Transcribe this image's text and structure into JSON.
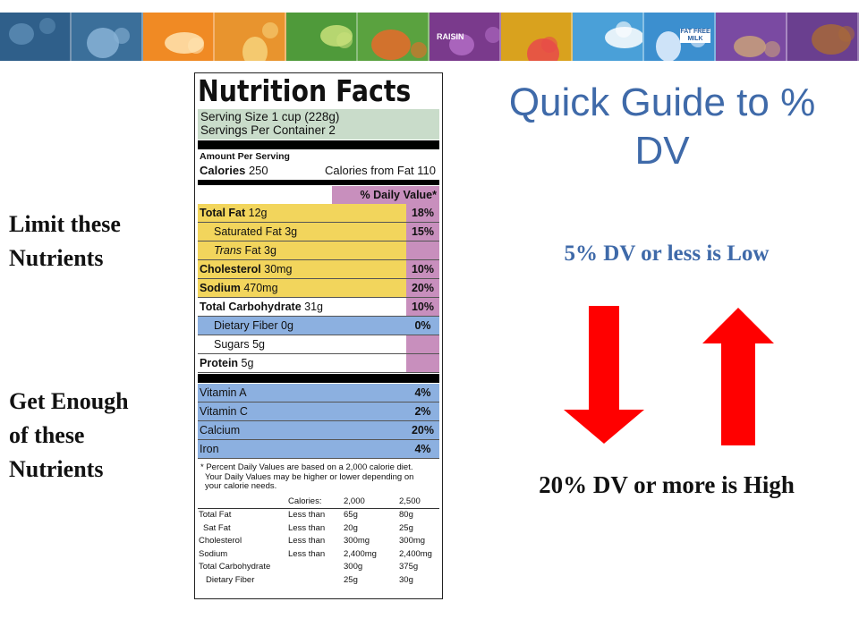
{
  "banner": {
    "tiles": [
      {
        "color": "#2f5f8a",
        "accent": "#5b8bb3"
      },
      {
        "color": "#3b6f9a",
        "accent": "#88b3d6"
      },
      {
        "color": "#f08a24",
        "accent": "#ffe3b0"
      },
      {
        "color": "#e8942e",
        "accent": "#f6d27a"
      },
      {
        "color": "#4f9a3a",
        "accent": "#c8e07a"
      },
      {
        "color": "#5aa23f",
        "accent": "#e86a2a"
      },
      {
        "color": "#7a3a8c",
        "accent": "#b16cc4"
      },
      {
        "color": "#d9a21e",
        "accent": "#e84a4a"
      },
      {
        "color": "#4aa0d8",
        "accent": "#ffffff"
      },
      {
        "color": "#3c8fcf",
        "accent": "#e8f2ff"
      },
      {
        "color": "#7a4aa2",
        "accent": "#c9a07a"
      },
      {
        "color": "#6a3f8f",
        "accent": "#a6673a"
      }
    ],
    "raisin_label": "RAISIN",
    "milk_label": "FAT FREE MILK"
  },
  "label": {
    "title": "Nutrition Facts",
    "serving_size": "Serving Size 1 cup (228g)",
    "servings_per_container": "Servings Per Container  2",
    "amount_per_serving": "Amount Per Serving",
    "calories_label": "Calories",
    "calories_value": "250",
    "calories_from_fat": "Calories from Fat 110",
    "dv_header": "% Daily Value*",
    "nutrients": [
      {
        "name": "Total Fat",
        "amount": "12g",
        "dv": "18%",
        "bold": true,
        "indent": false,
        "italic_trans": false,
        "color": "yellow"
      },
      {
        "name": "Saturated Fat",
        "amount": "3g",
        "dv": "15%",
        "bold": false,
        "indent": true,
        "italic_trans": false,
        "color": "yellow"
      },
      {
        "name": "Trans",
        "amount": "Fat 3g",
        "dv": "",
        "bold": false,
        "indent": true,
        "italic_trans": true,
        "color": "yellow"
      },
      {
        "name": "Cholesterol",
        "amount": "30mg",
        "dv": "10%",
        "bold": true,
        "indent": false,
        "italic_trans": false,
        "color": "yellow"
      },
      {
        "name": "Sodium",
        "amount": "470mg",
        "dv": "20%",
        "bold": true,
        "indent": false,
        "italic_trans": false,
        "color": "yellow"
      },
      {
        "name": "Total Carbohydrate",
        "amount": "31g",
        "dv": "10%",
        "bold": true,
        "indent": false,
        "italic_trans": false,
        "color": "white"
      },
      {
        "name": "Dietary Fiber",
        "amount": "0g",
        "dv": "0%",
        "bold": false,
        "indent": true,
        "italic_trans": false,
        "color": "blue"
      },
      {
        "name": "Sugars",
        "amount": "5g",
        "dv": "",
        "bold": false,
        "indent": true,
        "italic_trans": false,
        "color": "white"
      },
      {
        "name": "Protein",
        "amount": "5g",
        "dv": "",
        "bold": true,
        "indent": false,
        "italic_trans": false,
        "color": "white"
      }
    ],
    "vitamins": [
      {
        "name": "Vitamin A",
        "dv": "4%"
      },
      {
        "name": "Vitamin C",
        "dv": "2%"
      },
      {
        "name": "Calcium",
        "dv": "20%"
      },
      {
        "name": "Iron",
        "dv": "4%"
      }
    ],
    "footnote": [
      "* Percent Daily Values are based on a 2,000 calorie diet.",
      "Your Daily Values may be higher or lower depending on",
      "your calorie needs."
    ],
    "dv_table": {
      "header": [
        "",
        "Calories:",
        "2,000",
        "2,500"
      ],
      "rows": [
        [
          "Total Fat",
          "Less than",
          "65g",
          "80g"
        ],
        [
          "  Sat Fat",
          "Less than",
          "20g",
          "25g"
        ],
        [
          "Cholesterol",
          "Less than",
          "300mg",
          "300mg"
        ],
        [
          "Sodium",
          "Less than",
          "2,400mg",
          "2,400mg"
        ],
        [
          "Total Carbohydrate",
          "",
          "300g",
          "375g"
        ],
        [
          "   Dietary Fiber",
          "",
          "25g",
          "30g"
        ]
      ]
    }
  },
  "limit_text": [
    "Limit these",
    "Nutrients"
  ],
  "enough_text": [
    "Get Enough",
    "of these",
    "Nutrients"
  ],
  "guide_title": "Quick Guide to % DV",
  "low_text": "5% DV or less is Low",
  "high_text": "20% DV or more is High",
  "colors": {
    "arrow": "#ff0000",
    "title_blue": "#3f6aa9"
  }
}
